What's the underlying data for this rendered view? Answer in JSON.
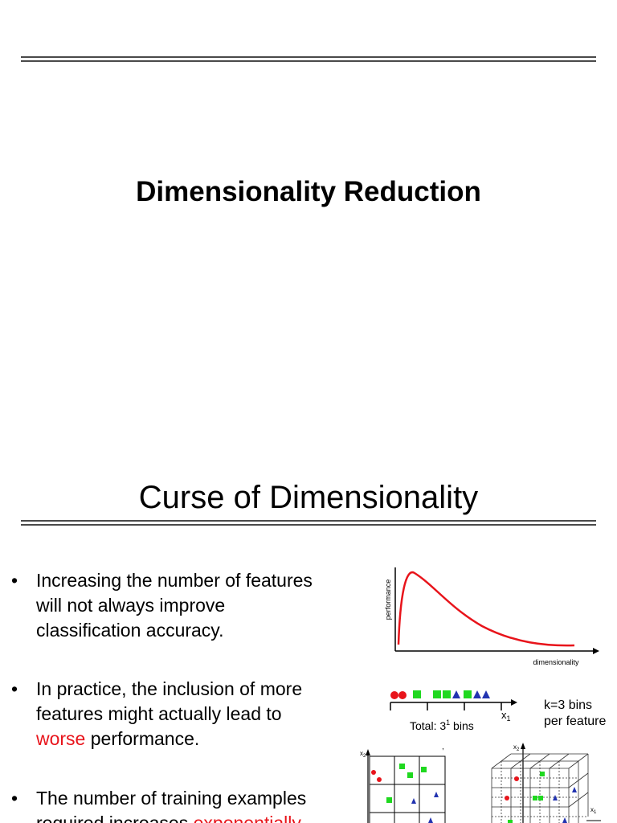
{
  "slide1": {
    "title": "Dimensionality Reduction"
  },
  "slide2": {
    "title": "Curse of Dimensionality",
    "bullets": [
      {
        "dot": "•",
        "lines": [
          "Increasing the number of features",
          "will not always improve",
          "classification accuracy."
        ]
      },
      {
        "dot": "•",
        "lines": [
          "In practice, the inclusion of more",
          "features might actually lead to"
        ],
        "highlight": "worse",
        "tail": " performance."
      },
      {
        "dot": "•",
        "lines": [
          "The number of training examples"
        ],
        "partial": "required increases ",
        "highlight": "exponentially"
      }
    ],
    "plot": {
      "y_axis_label": "performance",
      "x_axis_label": "dimensionality",
      "curve_color": "#e8141b"
    },
    "bins": {
      "axis_label": "x",
      "axis_subscript": "1",
      "total_prefix": "Total: 3",
      "total_exponent": "1",
      "total_suffix": " bins",
      "side_label_line1": "k=3 bins",
      "side_label_line2": "per feature"
    },
    "grid2d": {
      "axis_label": "x",
      "axis_subscript": "2"
    },
    "grid3d": {
      "axis_label_top": "x",
      "axis_subscript_top": "2",
      "axis_label_right": "x",
      "axis_subscript_right": "1"
    },
    "colors": {
      "red": "#e8141b",
      "green": "#1fd81f",
      "blue": "#2233b0"
    }
  }
}
